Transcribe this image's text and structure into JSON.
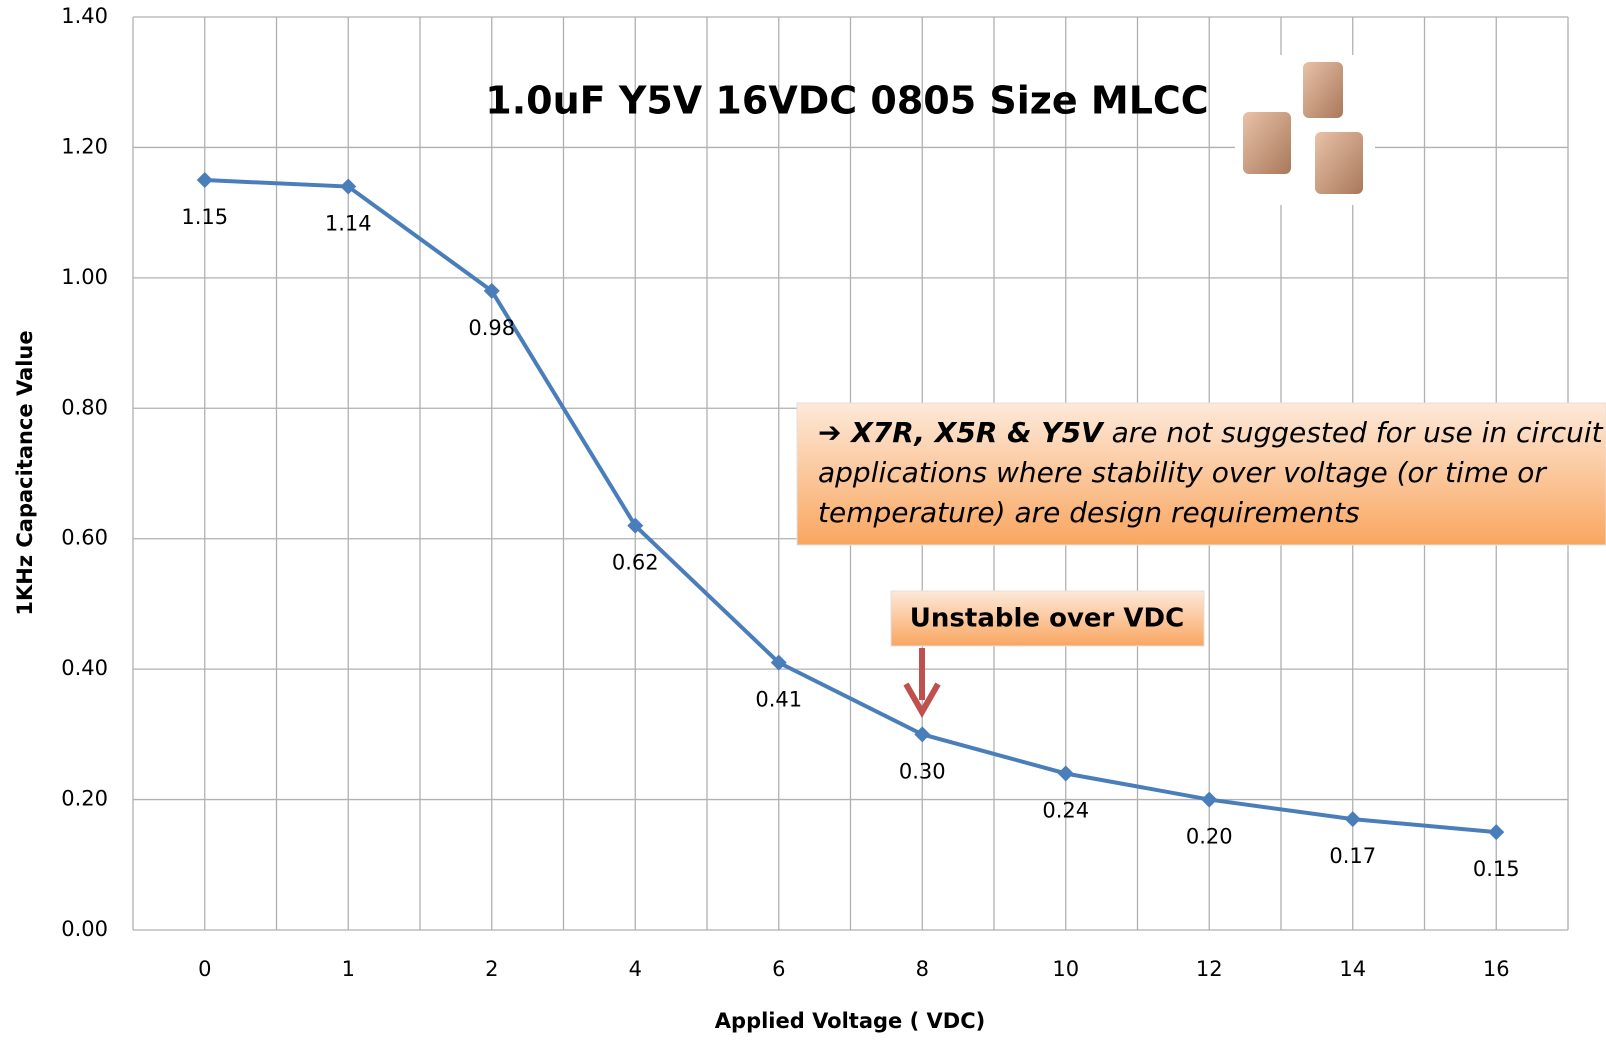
{
  "chart_data": {
    "type": "line",
    "title": "1.0uF Y5V 16VDC 0805 Size MLCC",
    "x_label": "Applied Voltage ( VDC)",
    "y_label": "1KHz Capacitance Value",
    "categories": [
      "0",
      "1",
      "2",
      "4",
      "6",
      "8",
      "10",
      "12",
      "14",
      "16"
    ],
    "series": [
      {
        "name": "Capacitance",
        "color": "#4a7ebb",
        "values": [
          1.15,
          1.14,
          0.98,
          0.62,
          0.41,
          0.3,
          0.24,
          0.2,
          0.17,
          0.15
        ],
        "value_labels": [
          "1.15",
          "1.14",
          "0.98",
          "0.62",
          "0.41",
          "0.30",
          "0.24",
          "0.20",
          "0.17",
          "0.15"
        ]
      }
    ],
    "ylim": [
      0,
      1.4
    ],
    "yticks": [
      {
        "value": 0,
        "label": "0.00"
      },
      {
        "value": 0.2,
        "label": "0.20"
      },
      {
        "value": 0.4,
        "label": "0.40"
      },
      {
        "value": 0.6,
        "label": "0.60"
      },
      {
        "value": 0.8,
        "label": "0.80"
      },
      {
        "value": 1.0,
        "label": "1.00"
      },
      {
        "value": 1.2,
        "label": "1.20"
      },
      {
        "value": 1.4,
        "label": "1.40"
      }
    ],
    "grid": true,
    "annotations": {
      "arrow_note": "Unstable over VDC",
      "callout": {
        "lead": "➔ X7R, X5R & Y5V",
        "line1": " are not suggested for use in circuit",
        "line2": "applications where stability over voltage (or time or",
        "line3": "temperature) are design requirements"
      }
    }
  }
}
